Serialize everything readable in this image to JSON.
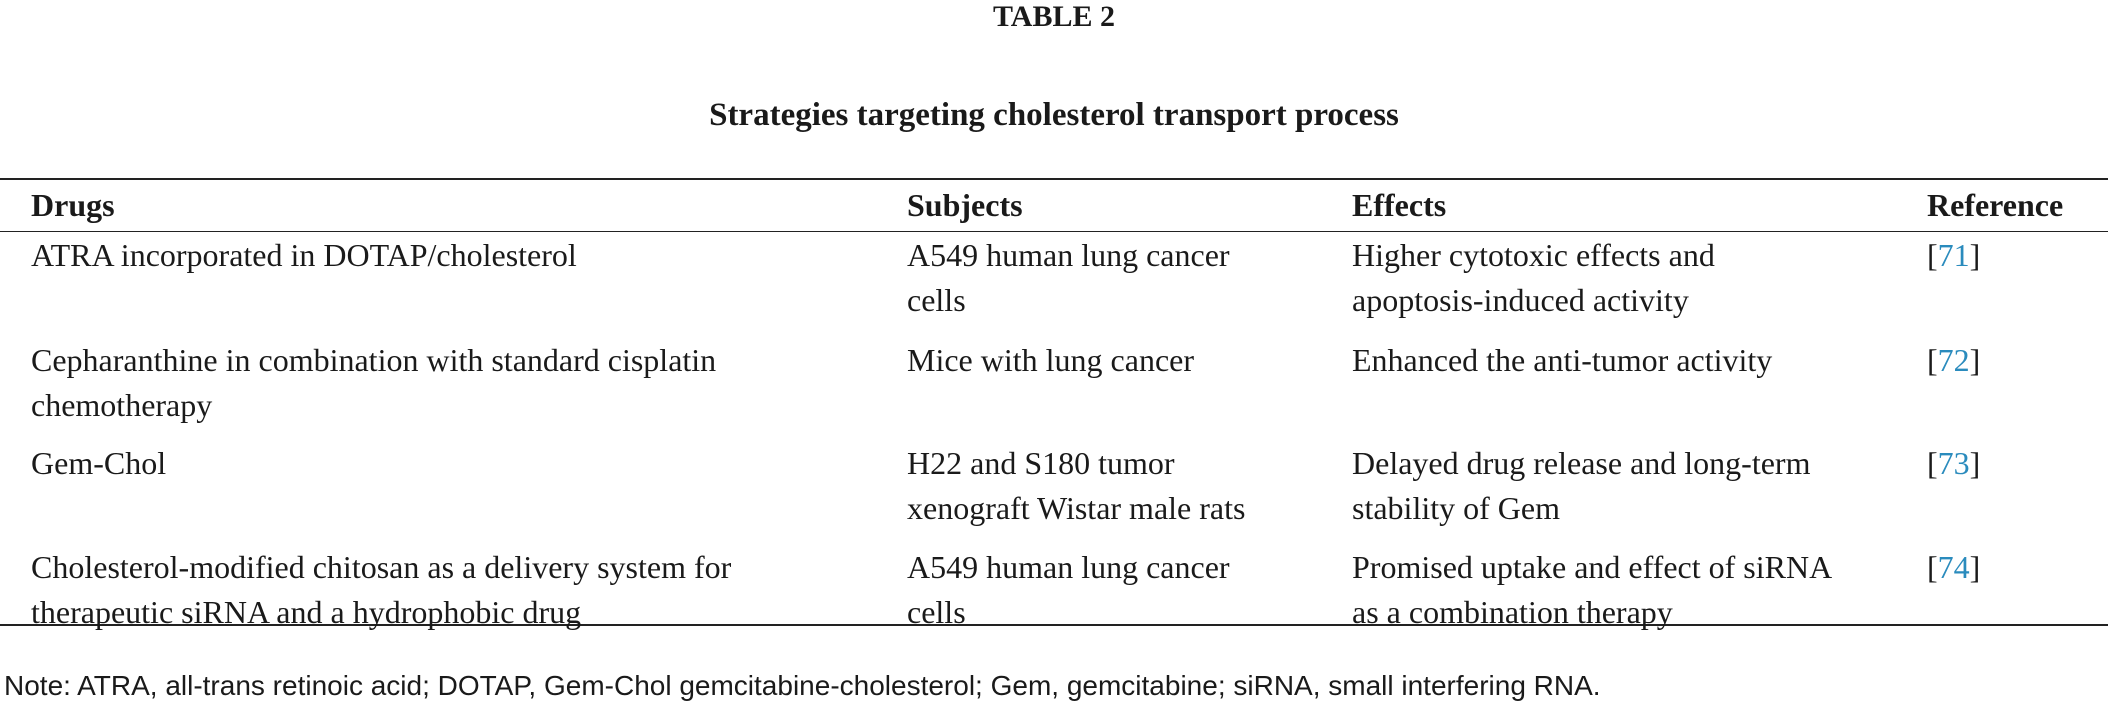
{
  "header": {
    "label": "TABLE 2",
    "title": "Strategies targeting cholesterol transport process"
  },
  "table": {
    "columns": [
      "Drugs",
      "Subjects",
      "Effects",
      "Reference"
    ],
    "rows": [
      {
        "drugs": [
          "ATRA incorporated in DOTAP/cholesterol"
        ],
        "subjects": [
          "A549 human lung cancer",
          "cells"
        ],
        "effects": [
          "Higher cytotoxic effects and",
          "apoptosis-induced activity"
        ],
        "reference": "71"
      },
      {
        "drugs": [
          "Cepharanthine in combination with standard cisplatin",
          "chemotherapy"
        ],
        "subjects": [
          "Mice with lung cancer"
        ],
        "effects": [
          "Enhanced the anti-tumor activity"
        ],
        "reference": "72"
      },
      {
        "drugs": [
          "Gem-Chol"
        ],
        "subjects": [
          "H22 and S180 tumor",
          "xenograft Wistar male rats"
        ],
        "effects": [
          "Delayed drug release and long-term",
          "stability of Gem"
        ],
        "reference": "73"
      },
      {
        "drugs": [
          "Cholesterol-modified chitosan as a delivery system for",
          "therapeutic siRNA and a hydrophobic drug"
        ],
        "subjects": [
          "A549 human lung cancer",
          "cells"
        ],
        "effects": [
          "Promised uptake and effect of siRNA",
          "as a combination therapy"
        ],
        "reference": "74"
      }
    ]
  },
  "note": "Note: ATRA, all-trans retinoic acid; DOTAP, Gem-Chol gemcitabine-cholesterol; Gem, gemcitabine; siRNA, small interfering RNA."
}
